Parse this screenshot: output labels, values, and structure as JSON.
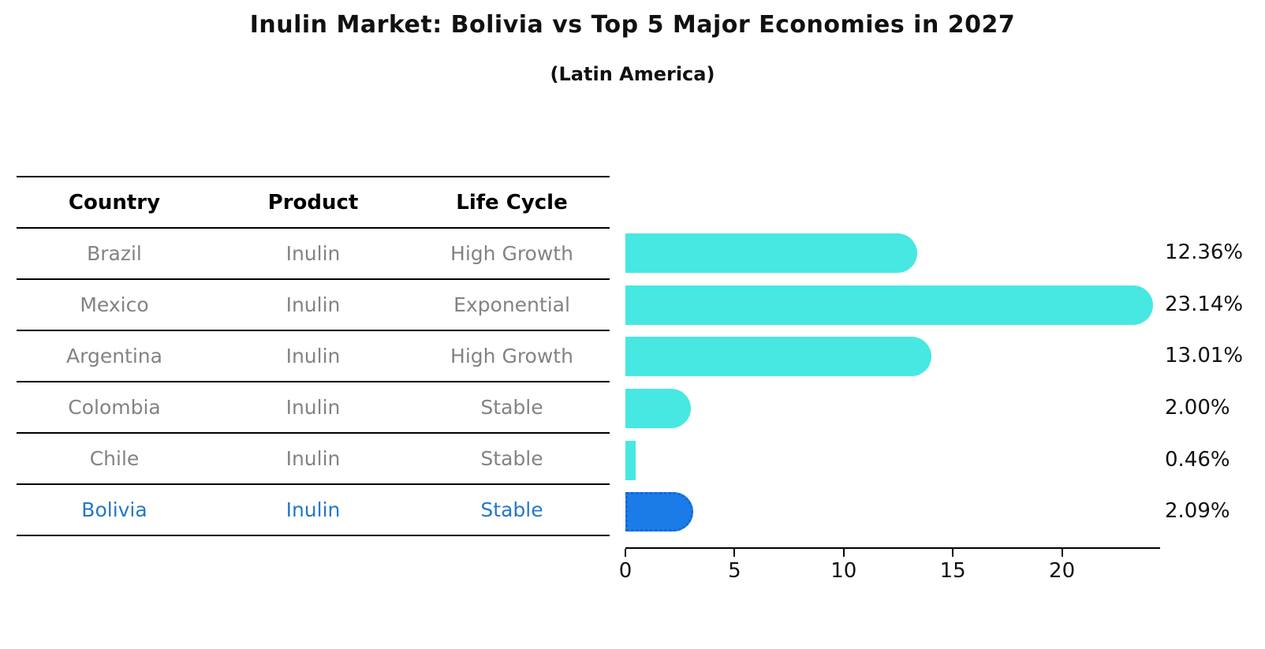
{
  "header": {
    "title": "Inulin Market: Bolivia vs Top 5 Major Economies in 2027",
    "subtitle": "(Latin America)"
  },
  "table": {
    "headers": [
      "Country",
      "Product",
      "Life Cycle"
    ],
    "rows": [
      {
        "country": "Brazil",
        "product": "Inulin",
        "life_cycle": "High Growth",
        "highlight": false
      },
      {
        "country": "Mexico",
        "product": "Inulin",
        "life_cycle": "Exponential",
        "highlight": false
      },
      {
        "country": "Argentina",
        "product": "Inulin",
        "life_cycle": "High Growth",
        "highlight": false
      },
      {
        "country": "Colombia",
        "product": "Inulin",
        "life_cycle": "Stable",
        "highlight": false
      },
      {
        "country": "Chile",
        "product": "Inulin",
        "life_cycle": "Stable",
        "highlight": false
      },
      {
        "country": "Bolivia",
        "product": "Inulin",
        "life_cycle": "Stable",
        "highlight": true
      }
    ]
  },
  "chart_data": {
    "type": "bar",
    "orientation": "horizontal",
    "title": "Inulin Market: Bolivia vs Top 5 Major Economies in 2027",
    "subtitle": "(Latin America)",
    "categories": [
      "Brazil",
      "Mexico",
      "Argentina",
      "Colombia",
      "Chile",
      "Bolivia"
    ],
    "values": [
      12.36,
      23.14,
      13.01,
      2.0,
      0.46,
      2.09
    ],
    "value_labels": [
      "12.36%",
      "23.14%",
      "13.01%",
      "2.00%",
      "0.46%",
      "2.09%"
    ],
    "unit": "%",
    "x_ticks": [
      0,
      5,
      10,
      15,
      20
    ],
    "xlim": [
      0,
      24.5
    ],
    "grid": false,
    "legend": false,
    "bar_color": "#47E8E2",
    "highlight_color": "#1B7CE8",
    "highlight_border_color": "#1266DD",
    "highlight_index": 5,
    "highlight_text_color": "#2478C8",
    "table_text_color": "#838383"
  }
}
